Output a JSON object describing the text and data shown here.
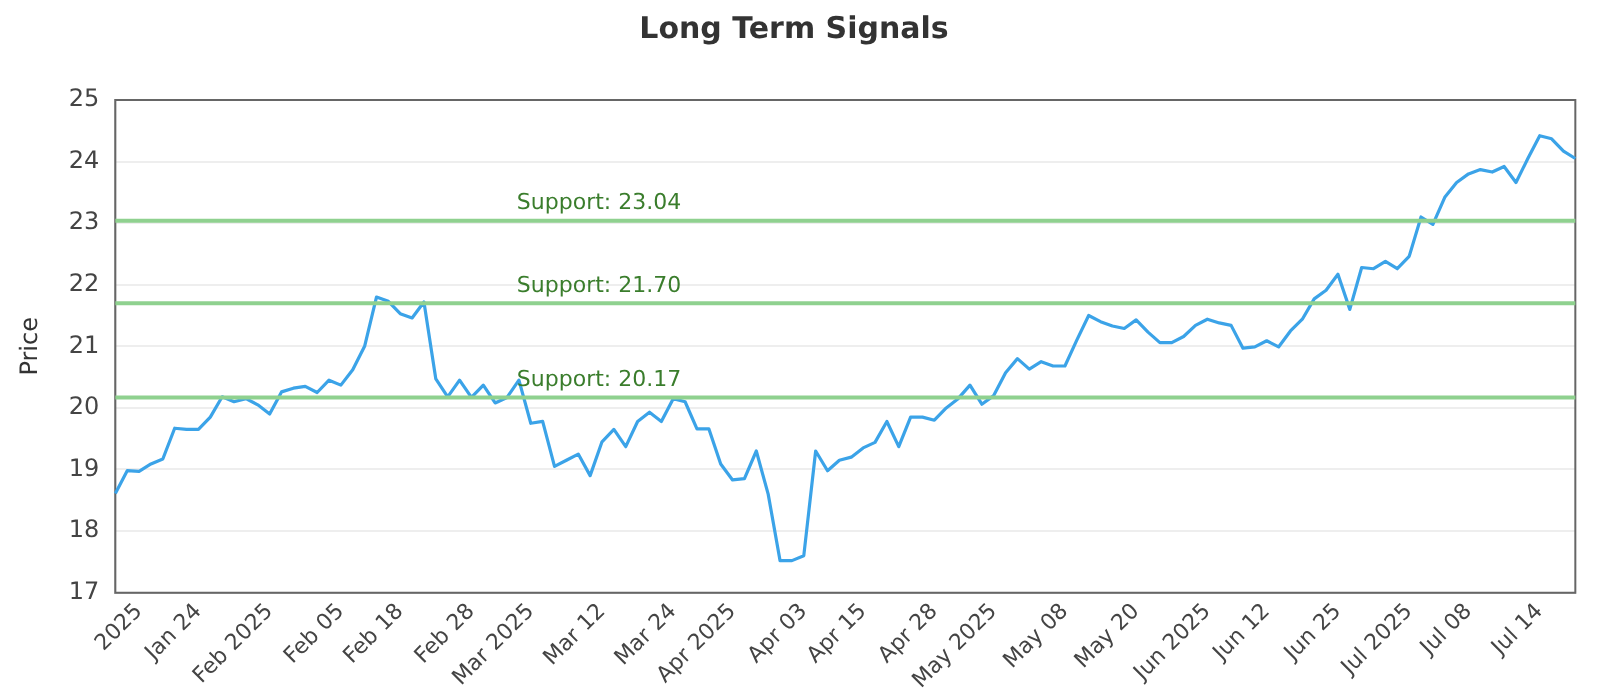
{
  "chart_data": {
    "type": "line",
    "title": "Long Term Signals",
    "ylabel": "Price",
    "categories": [
      null,
      null,
      "2025",
      null,
      null,
      null,
      null,
      "Jan 24",
      null,
      null,
      null,
      null,
      null,
      "Feb 2025",
      null,
      null,
      null,
      null,
      null,
      "Feb 05",
      null,
      null,
      null,
      null,
      "Feb 18",
      null,
      null,
      null,
      null,
      null,
      "Feb 28",
      null,
      null,
      null,
      null,
      "Mar 2025",
      null,
      null,
      null,
      null,
      null,
      "Mar 12",
      null,
      null,
      null,
      null,
      null,
      "Mar 24",
      null,
      null,
      null,
      null,
      "Apr 2025",
      null,
      null,
      null,
      null,
      null,
      "Apr 03",
      null,
      null,
      null,
      null,
      "Apr 15",
      null,
      null,
      null,
      null,
      null,
      "Apr 28",
      null,
      null,
      null,
      null,
      "May 2025",
      null,
      null,
      null,
      null,
      null,
      "May 08",
      null,
      null,
      null,
      null,
      null,
      "May 20",
      null,
      null,
      null,
      null,
      null,
      "Jun 2025",
      null,
      null,
      null,
      null,
      "Jun 12",
      null,
      null,
      null,
      null,
      null,
      "Jun 25",
      null,
      null,
      null,
      null,
      null,
      "Jul 2025",
      null,
      null,
      null,
      null,
      "Jul 08",
      null,
      null,
      null,
      null,
      null,
      "Jul 14",
      null,
      null,
      null
    ],
    "series": [
      {
        "color": "#3ba3e8",
        "values": [
          18.61,
          18.98,
          18.97,
          19.09,
          19.17,
          19.67,
          19.65,
          19.65,
          19.85,
          20.18,
          20.1,
          20.15,
          20.05,
          19.9,
          20.26,
          20.32,
          20.35,
          20.25,
          20.45,
          20.37,
          20.62,
          21.0,
          21.8,
          21.73,
          21.53,
          21.46,
          21.72,
          20.47,
          20.18,
          20.45,
          20.17,
          20.37,
          20.08,
          20.17,
          20.45,
          19.75,
          19.78,
          19.05,
          19.15,
          19.25,
          18.9,
          19.45,
          19.65,
          19.37,
          19.78,
          19.93,
          19.78,
          20.15,
          20.1,
          19.66,
          19.66,
          19.09,
          18.83,
          18.85,
          19.3,
          18.6,
          17.52,
          17.52,
          17.6,
          19.3,
          18.98,
          19.15,
          19.2,
          19.35,
          19.44,
          19.78,
          19.37,
          19.85,
          19.85,
          19.8,
          20.0,
          20.15,
          20.37,
          20.06,
          20.2,
          20.57,
          20.8,
          20.63,
          20.75,
          20.68,
          20.68,
          21.1,
          21.5,
          21.4,
          21.33,
          21.29,
          21.43,
          21.23,
          21.06,
          21.06,
          21.16,
          21.34,
          21.44,
          21.38,
          21.34,
          20.97,
          20.99,
          21.09,
          20.99,
          21.25,
          21.44,
          21.77,
          21.91,
          22.17,
          21.6,
          22.28,
          22.26,
          22.38,
          22.26,
          22.46,
          23.1,
          22.98,
          23.42,
          23.66,
          23.8,
          23.87,
          23.83,
          23.92,
          23.66,
          24.05,
          24.42,
          24.37,
          24.17,
          24.05
        ]
      }
    ],
    "ylim": [
      17,
      25
    ],
    "yticks": [
      17,
      18,
      19,
      20,
      21,
      22,
      23,
      24,
      25
    ],
    "grid": "y",
    "legend": false,
    "marker": "none",
    "line_style": "solid",
    "ref_lines": [
      {
        "axis": "y",
        "value": 23.04,
        "label": "Support: 23.04",
        "color": "#8fd18f"
      },
      {
        "axis": "y",
        "value": 21.7,
        "label": "Support: 21.70",
        "color": "#8fd18f"
      },
      {
        "axis": "y",
        "value": 20.17,
        "label": "Support: 20.17",
        "color": "#8fd18f"
      }
    ]
  }
}
